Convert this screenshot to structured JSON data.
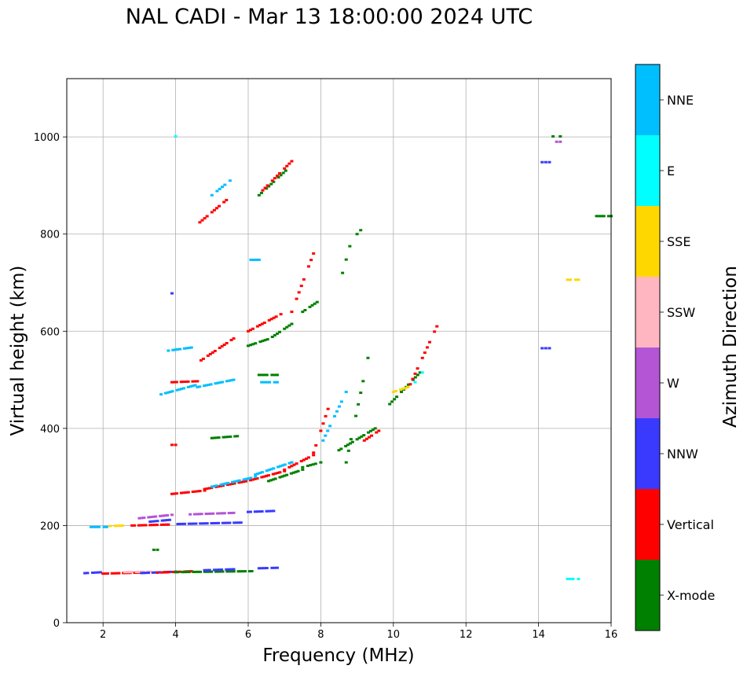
{
  "chart_data": {
    "type": "scatter",
    "title": "NAL CADI - Mar 13 18:00:00 2024 UTC",
    "xlabel": "Frequency (MHz)",
    "ylabel": "Virtual height (km)",
    "xlim": [
      1,
      16
    ],
    "ylim": [
      0,
      1120
    ],
    "xticks": [
      2,
      4,
      6,
      8,
      10,
      12,
      14,
      16
    ],
    "yticks": [
      0,
      200,
      400,
      600,
      800,
      1000
    ],
    "grid": true,
    "colorbar": {
      "label": "Azimuth Direction",
      "categories": [
        {
          "name": "X-mode",
          "color": "#008000"
        },
        {
          "name": "Vertical",
          "color": "#ff0000"
        },
        {
          "name": "NNW",
          "color": "#3a3aff"
        },
        {
          "name": "W",
          "color": "#b455d6"
        },
        {
          "name": "SSW",
          "color": "#ffb6c1"
        },
        {
          "name": "SSE",
          "color": "#ffd700"
        },
        {
          "name": "E",
          "color": "#00ffff"
        },
        {
          "name": "NNE",
          "color": "#00bfff"
        }
      ]
    },
    "traces": [
      {
        "x0": 1.5,
        "x1": 2.0,
        "h0": 102,
        "h1": 104,
        "dir": "NNW"
      },
      {
        "x0": 2.0,
        "x1": 3.0,
        "h0": 101,
        "h1": 103,
        "dir": "Vertical"
      },
      {
        "x0": 2.6,
        "x1": 3.3,
        "h0": 104,
        "h1": 105,
        "dir": "SSW"
      },
      {
        "x0": 3.0,
        "x1": 4.0,
        "h0": 102,
        "h1": 105,
        "dir": "NNW"
      },
      {
        "x0": 3.5,
        "x1": 4.5,
        "h0": 103,
        "h1": 106,
        "dir": "Vertical"
      },
      {
        "x0": 4.0,
        "x1": 6.1,
        "h0": 104,
        "h1": 106,
        "dir": "X-mode"
      },
      {
        "x0": 4.8,
        "x1": 5.6,
        "h0": 108,
        "h1": 110,
        "dir": "NNW"
      },
      {
        "x0": 6.3,
        "x1": 6.8,
        "h0": 112,
        "h1": 113,
        "dir": "NNW"
      },
      {
        "x0": 1.6,
        "x1": 2.1,
        "h0": 197,
        "h1": 197,
        "dir": "NNE"
      },
      {
        "x0": 2.2,
        "x1": 2.6,
        "h0": 199,
        "h1": 200,
        "dir": "SSE"
      },
      {
        "x0": 2.8,
        "x1": 3.8,
        "h0": 200,
        "h1": 202,
        "dir": "Vertical"
      },
      {
        "x0": 3.0,
        "x1": 3.9,
        "h0": 215,
        "h1": 222,
        "dir": "W"
      },
      {
        "x0": 3.3,
        "x1": 3.9,
        "h0": 208,
        "h1": 212,
        "dir": "NNW"
      },
      {
        "x0": 4.0,
        "x1": 5.8,
        "h0": 203,
        "h1": 206,
        "dir": "NNW"
      },
      {
        "x0": 4.4,
        "x1": 5.6,
        "h0": 223,
        "h1": 226,
        "dir": "W"
      },
      {
        "x0": 6.0,
        "x1": 6.7,
        "h0": 228,
        "h1": 230,
        "dir": "NNW"
      },
      {
        "x0": 3.9,
        "x1": 4.8,
        "h0": 265,
        "h1": 272,
        "dir": "Vertical"
      },
      {
        "x0": 4.8,
        "x1": 6.0,
        "h0": 275,
        "h1": 292,
        "dir": "Vertical"
      },
      {
        "x0": 6.0,
        "x1": 7.0,
        "h0": 292,
        "h1": 312,
        "dir": "Vertical"
      },
      {
        "x0": 7.0,
        "x1": 7.8,
        "h0": 315,
        "h1": 345,
        "dir": "Vertical"
      },
      {
        "x0": 7.8,
        "x1": 8.2,
        "h0": 350,
        "h1": 440,
        "dir": "Vertical"
      },
      {
        "x0": 5.0,
        "x1": 6.2,
        "h0": 280,
        "h1": 300,
        "dir": "NNE"
      },
      {
        "x0": 6.2,
        "x1": 7.2,
        "h0": 305,
        "h1": 330,
        "dir": "NNE"
      },
      {
        "x0": 6.5,
        "x1": 7.5,
        "h0": 290,
        "h1": 315,
        "dir": "X-mode"
      },
      {
        "x0": 7.5,
        "x1": 8.0,
        "h0": 320,
        "h1": 330,
        "dir": "X-mode"
      },
      {
        "x0": 8.5,
        "x1": 9.5,
        "h0": 355,
        "h1": 400,
        "dir": "X-mode"
      },
      {
        "x0": 8.7,
        "x1": 9.3,
        "h0": 330,
        "h1": 545,
        "dir": "X-mode"
      },
      {
        "x0": 9.2,
        "x1": 9.6,
        "h0": 375,
        "h1": 395,
        "dir": "Vertical"
      },
      {
        "x0": 8.0,
        "x1": 8.7,
        "h0": 365,
        "h1": 475,
        "dir": "NNE"
      },
      {
        "x0": 3.6,
        "x1": 4.6,
        "h0": 470,
        "h1": 490,
        "dir": "NNE"
      },
      {
        "x0": 4.6,
        "x1": 5.6,
        "h0": 485,
        "h1": 500,
        "dir": "NNE"
      },
      {
        "x0": 3.9,
        "x1": 4.6,
        "h0": 495,
        "h1": 497,
        "dir": "Vertical"
      },
      {
        "x0": 6.3,
        "x1": 6.8,
        "h0": 510,
        "h1": 510,
        "dir": "X-mode"
      },
      {
        "x0": 6.3,
        "x1": 6.8,
        "h0": 495,
        "h1": 495,
        "dir": "NNE"
      },
      {
        "x0": 3.8,
        "x1": 4.5,
        "h0": 560,
        "h1": 567,
        "dir": "NNE"
      },
      {
        "x0": 4.7,
        "x1": 5.6,
        "h0": 540,
        "h1": 585,
        "dir": "Vertical"
      },
      {
        "x0": 6.0,
        "x1": 6.9,
        "h0": 600,
        "h1": 635,
        "dir": "Vertical"
      },
      {
        "x0": 6.0,
        "x1": 6.6,
        "h0": 570,
        "h1": 585,
        "dir": "X-mode"
      },
      {
        "x0": 6.6,
        "x1": 7.2,
        "h0": 585,
        "h1": 615,
        "dir": "X-mode"
      },
      {
        "x0": 7.2,
        "x1": 7.8,
        "h0": 640,
        "h1": 760,
        "dir": "Vertical"
      },
      {
        "x0": 7.5,
        "x1": 7.9,
        "h0": 640,
        "h1": 660,
        "dir": "X-mode"
      },
      {
        "x0": 8.6,
        "x1": 8.8,
        "h0": 720,
        "h1": 775,
        "dir": "X-mode"
      },
      {
        "x0": 9.0,
        "x1": 9.1,
        "h0": 800,
        "h1": 808,
        "dir": "X-mode"
      },
      {
        "x0": 4.6,
        "x1": 5.4,
        "h0": 820,
        "h1": 870,
        "dir": "Vertical"
      },
      {
        "x0": 5.0,
        "x1": 5.5,
        "h0": 880,
        "h1": 910,
        "dir": "NNE"
      },
      {
        "x0": 6.3,
        "x1": 7.1,
        "h0": 880,
        "h1": 935,
        "dir": "X-mode"
      },
      {
        "x0": 6.4,
        "x1": 7.2,
        "h0": 890,
        "h1": 950,
        "dir": "Vertical"
      },
      {
        "x0": 9.9,
        "x1": 10.8,
        "h0": 450,
        "h1": 520,
        "dir": "X-mode"
      },
      {
        "x0": 10.4,
        "x1": 11.2,
        "h0": 480,
        "h1": 610,
        "dir": "Vertical"
      },
      {
        "x0": 10.6,
        "x1": 10.8,
        "h0": 495,
        "h1": 515,
        "dir": "E"
      },
      {
        "x0": 10.0,
        "x1": 10.4,
        "h0": 475,
        "h1": 485,
        "dir": "SSE"
      },
      {
        "x0": 14.1,
        "x1": 14.3,
        "h0": 565,
        "h1": 565,
        "dir": "NNW"
      },
      {
        "x0": 14.1,
        "x1": 14.3,
        "h0": 948,
        "h1": 948,
        "dir": "NNW"
      },
      {
        "x0": 14.4,
        "x1": 14.6,
        "h0": 990,
        "h1": 990,
        "dir": "W"
      },
      {
        "x0": 14.4,
        "x1": 14.6,
        "h0": 1001,
        "h1": 1001,
        "dir": "X-mode"
      },
      {
        "x0": 14.8,
        "x1": 15.1,
        "h0": 706,
        "h1": 706,
        "dir": "SSE"
      },
      {
        "x0": 14.8,
        "x1": 15.1,
        "h0": 90,
        "h1": 90,
        "dir": "E"
      },
      {
        "x0": 15.6,
        "x1": 16.0,
        "h0": 837,
        "h1": 837,
        "dir": "X-mode"
      },
      {
        "x0": 3.9,
        "x1": 4.0,
        "h0": 1001,
        "h1": 1001,
        "dir": "E"
      },
      {
        "x0": 3.9,
        "x1": 4.0,
        "h0": 678,
        "h1": 678,
        "dir": "NNW"
      },
      {
        "x0": 3.9,
        "x1": 4.0,
        "h0": 366,
        "h1": 366,
        "dir": "Vertical"
      },
      {
        "x0": 3.4,
        "x1": 3.5,
        "h0": 150,
        "h1": 150,
        "dir": "X-mode"
      },
      {
        "x0": 5.0,
        "x1": 5.7,
        "h0": 380,
        "h1": 384,
        "dir": "X-mode"
      },
      {
        "x0": 6.0,
        "x1": 6.3,
        "h0": 747,
        "h1": 747,
        "dir": "NNE"
      }
    ]
  }
}
